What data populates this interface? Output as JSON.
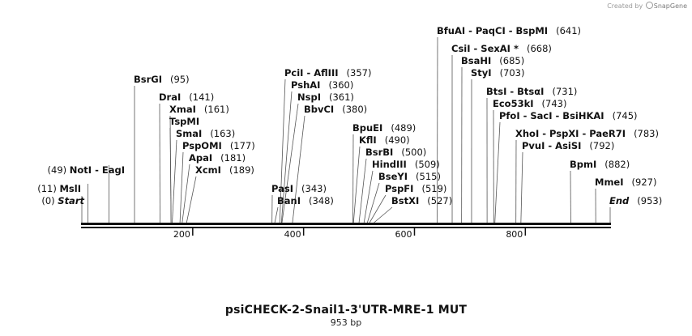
{
  "credit": {
    "prefix": "Created by",
    "brand": "SnapGene"
  },
  "title": "psiCHECK-2-Snail1-3'UTR-MRE-1 MUT",
  "subtitle": "953 bp",
  "sequence_length": 953,
  "ticks": [
    "200",
    "400",
    "600",
    "800"
  ],
  "tick_values": [
    200,
    400,
    600,
    800
  ],
  "labels": [
    {
      "text": "(0)  ",
      "emph": "Start",
      "pos": 0,
      "side": "left"
    },
    {
      "text": "(11)  MslI",
      "pos": 11,
      "side": "left"
    },
    {
      "text": "(49)  NotI  - EagI",
      "pos": 49,
      "side": "left"
    },
    {
      "text": "BsrGI",
      "num": "(95)",
      "pos": 95
    },
    {
      "text": "DraI",
      "num": "(141)",
      "pos": 141
    },
    {
      "text": "XmaI",
      "num": "(161)",
      "pos": 161
    },
    {
      "text": "TspMI",
      "num": "",
      "pos": 161
    },
    {
      "text": "SmaI",
      "num": "(163)",
      "pos": 163
    },
    {
      "text": "PspOMI",
      "num": "(177)",
      "pos": 177
    },
    {
      "text": "ApaI",
      "num": "(181)",
      "pos": 181
    },
    {
      "text": "XcmI",
      "num": "(189)",
      "pos": 189
    },
    {
      "text": "PasI",
      "num": "(343)",
      "pos": 343
    },
    {
      "text": "BanI",
      "num": "(348)",
      "pos": 348
    },
    {
      "text": "PciI  - AflIII",
      "num": "(357)",
      "pos": 357
    },
    {
      "text": "PshAI",
      "num": "(360)",
      "pos": 360
    },
    {
      "text": "NspI",
      "num": "(361)",
      "pos": 361
    },
    {
      "text": "BbvCI",
      "num": "(380)",
      "pos": 380
    },
    {
      "text": "BpuEI",
      "num": "(489)",
      "pos": 489
    },
    {
      "text": "KflI",
      "num": "(490)",
      "pos": 490
    },
    {
      "text": "BsrBI",
      "num": "(500)",
      "pos": 500
    },
    {
      "text": "HindIII",
      "num": "(509)",
      "pos": 509
    },
    {
      "text": "BseYI",
      "num": "(515)",
      "pos": 515
    },
    {
      "text": "PspFI",
      "num": "(519)",
      "pos": 519
    },
    {
      "text": "BstXI",
      "num": "(527)",
      "pos": 527
    },
    {
      "text": "BfuAI  - PaqCI  - BspMI",
      "num": "(641)",
      "pos": 641
    },
    {
      "text": "CsiI  - SexAI *",
      "num": "(668)",
      "pos": 668
    },
    {
      "text": "BsaHI",
      "num": "(685)",
      "pos": 685
    },
    {
      "text": "StyI",
      "num": "(703)",
      "pos": 703
    },
    {
      "text": "BtsI  - BtsαI",
      "num": "(731)",
      "pos": 731
    },
    {
      "text": "Eco53kI",
      "num": "(743)",
      "pos": 743
    },
    {
      "text": "PfoI  - SacI  - BsiHKAI",
      "num": "(745)",
      "pos": 745
    },
    {
      "text": "XhoI  - PspXI  - PaeR7I",
      "num": "(783)",
      "pos": 783
    },
    {
      "text": "PvuI  - AsiSI",
      "num": "(792)",
      "pos": 792
    },
    {
      "text": "BpmI",
      "num": "(882)",
      "pos": 882
    },
    {
      "text": "MmeI",
      "num": "(927)",
      "pos": 927
    },
    {
      "text": "End",
      "num": "(953)",
      "pos": 953,
      "emph": true
    }
  ]
}
